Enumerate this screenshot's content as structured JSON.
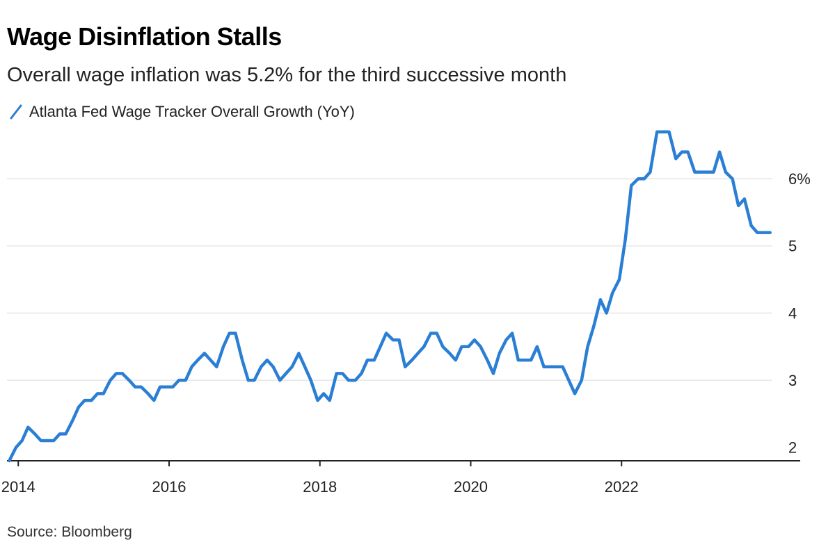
{
  "header": {
    "title": "Wage Disinflation Stalls",
    "subtitle": "Overall wage inflation was 5.2% for the third successive month"
  },
  "footer": {
    "source": "Source: Bloomberg"
  },
  "colors": {
    "line": "#2a7fd4",
    "grid": "#e6e6e6",
    "axis": "#222222"
  },
  "chart_data": {
    "type": "line",
    "title": "Wage Disinflation Stalls",
    "subtitle": "Overall wage inflation was 5.2% for the third successive month",
    "xlabel": "",
    "ylabel": "",
    "xlim": [
      2013.85,
      2024.0
    ],
    "ylim": [
      1.8,
      6.8
    ],
    "grid": true,
    "y_axis_side": "right",
    "legend_position": "top-left",
    "x_ticks": [
      2014,
      2016,
      2018,
      2020,
      2022
    ],
    "x_tick_labels": [
      "2014",
      "2016",
      "2018",
      "2020",
      "2022"
    ],
    "y_ticks": [
      2,
      3,
      4,
      5,
      6
    ],
    "y_tick_labels": [
      "2",
      "3",
      "4",
      "5",
      "6%"
    ],
    "series": [
      {
        "name": "Atlanta Fed Wage Tracker Overall Growth (YoY)",
        "color": "#2a7fd4",
        "x": [
          2013.88,
          2013.97,
          2014.05,
          2014.13,
          2014.22,
          2014.3,
          2014.38,
          2014.47,
          2014.55,
          2014.63,
          2014.72,
          2014.8,
          2014.88,
          2014.97,
          2015.05,
          2015.13,
          2015.22,
          2015.3,
          2015.38,
          2015.47,
          2015.55,
          2015.63,
          2015.72,
          2015.8,
          2015.88,
          2015.97,
          2016.05,
          2016.13,
          2016.22,
          2016.3,
          2016.38,
          2016.47,
          2016.55,
          2016.63,
          2016.72,
          2016.8,
          2016.88,
          2016.97,
          2017.05,
          2017.13,
          2017.22,
          2017.3,
          2017.38,
          2017.47,
          2017.55,
          2017.63,
          2017.72,
          2017.8,
          2017.88,
          2017.97,
          2018.05,
          2018.13,
          2018.22,
          2018.3,
          2018.38,
          2018.47,
          2018.55,
          2018.63,
          2018.72,
          2018.8,
          2018.88,
          2018.97,
          2019.05,
          2019.13,
          2019.22,
          2019.3,
          2019.38,
          2019.47,
          2019.55,
          2019.63,
          2019.72,
          2019.8,
          2019.88,
          2019.97,
          2020.05,
          2020.13,
          2020.22,
          2020.3,
          2020.38,
          2020.47,
          2020.55,
          2020.63,
          2020.72,
          2020.8,
          2020.88,
          2020.97,
          2021.05,
          2021.13,
          2021.22,
          2021.3,
          2021.38,
          2021.47,
          2021.55,
          2021.63,
          2021.72,
          2021.8,
          2021.88,
          2021.97,
          2022.05,
          2022.13,
          2022.22,
          2022.3,
          2022.38,
          2022.47,
          2022.55,
          2022.63,
          2022.72,
          2022.8,
          2022.88,
          2022.97,
          2023.05,
          2023.13,
          2023.22,
          2023.3,
          2023.38,
          2023.47,
          2023.55,
          2023.63,
          2023.72,
          2023.8,
          2023.88,
          2023.97
        ],
        "values": [
          1.8,
          2.0,
          2.1,
          2.3,
          2.2,
          2.1,
          2.1,
          2.1,
          2.2,
          2.2,
          2.4,
          2.6,
          2.7,
          2.7,
          2.8,
          2.8,
          3.0,
          3.1,
          3.1,
          3.0,
          2.9,
          2.9,
          2.8,
          2.7,
          2.9,
          2.9,
          2.9,
          3.0,
          3.0,
          3.2,
          3.3,
          3.4,
          3.3,
          3.2,
          3.5,
          3.7,
          3.7,
          3.3,
          3.0,
          3.0,
          3.2,
          3.3,
          3.2,
          3.0,
          3.1,
          3.2,
          3.4,
          3.2,
          3.0,
          2.7,
          2.8,
          2.7,
          3.1,
          3.1,
          3.0,
          3.0,
          3.1,
          3.3,
          3.3,
          3.5,
          3.7,
          3.6,
          3.6,
          3.2,
          3.3,
          3.4,
          3.5,
          3.7,
          3.7,
          3.5,
          3.4,
          3.3,
          3.5,
          3.5,
          3.6,
          3.5,
          3.3,
          3.1,
          3.4,
          3.6,
          3.7,
          3.3,
          3.3,
          3.3,
          3.5,
          3.2,
          3.2,
          3.2,
          3.2,
          3.0,
          2.8,
          3.0,
          3.5,
          3.8,
          4.2,
          4.0,
          4.3,
          4.5,
          5.1,
          5.9,
          6.0,
          6.0,
          6.1,
          6.7,
          6.7,
          6.7,
          6.3,
          6.4,
          6.4,
          6.1,
          6.1,
          6.1,
          6.1,
          6.4,
          6.1,
          6.0,
          5.6,
          5.7,
          5.3,
          5.2,
          5.2,
          5.2
        ]
      }
    ]
  }
}
